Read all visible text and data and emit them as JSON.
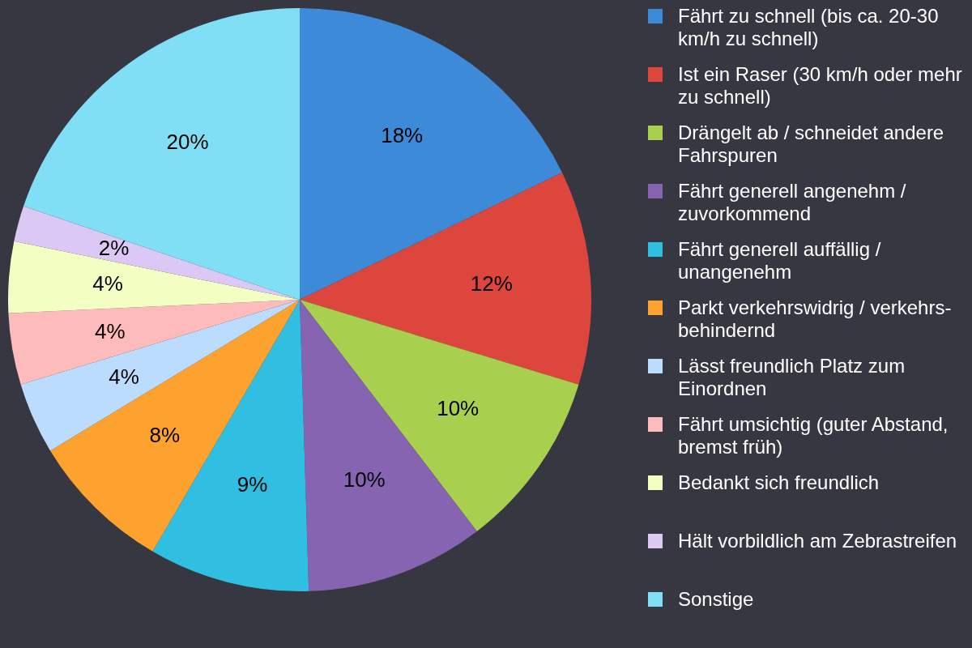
{
  "chart_data": {
    "type": "pie",
    "legend": "right",
    "categories": [
      "Fährt zu schnell (bis ca. 20-30 km/h zu schnell)",
      "Ist ein Raser (30 km/h oder mehr zu schnell)",
      "Drängelt ab / schneidet andere Fahrspuren",
      "Fährt generell angenehm / zuvorkommend",
      "Fährt generell auffällig / unangenehm",
      "Parkt verkehrswidrig / verkehrs-behindernd",
      "Lässt freundlich Platz zum Einordnen",
      "Fährt umsichtig (guter Abstand, bremst früh)",
      "Bedankt sich freundlich",
      "Hält vorbildlich am Zebrastreifen",
      "Sonstige"
    ],
    "values": [
      18,
      12,
      10,
      10,
      9,
      8,
      4,
      4,
      4,
      2,
      20
    ],
    "value_labels": [
      "18%",
      "12%",
      "10%",
      "10%",
      "9%",
      "8%",
      "4%",
      "4%",
      "4%",
      "2%",
      "20%"
    ],
    "colors": [
      "#3d8bd8",
      "#dc463c",
      "#a8cf4e",
      "#8664b2",
      "#30bfe0",
      "#fea22f",
      "#bcdcfe",
      "#fdbcbb",
      "#f3fec3",
      "#dcc8f4",
      "#80dff4"
    ]
  }
}
